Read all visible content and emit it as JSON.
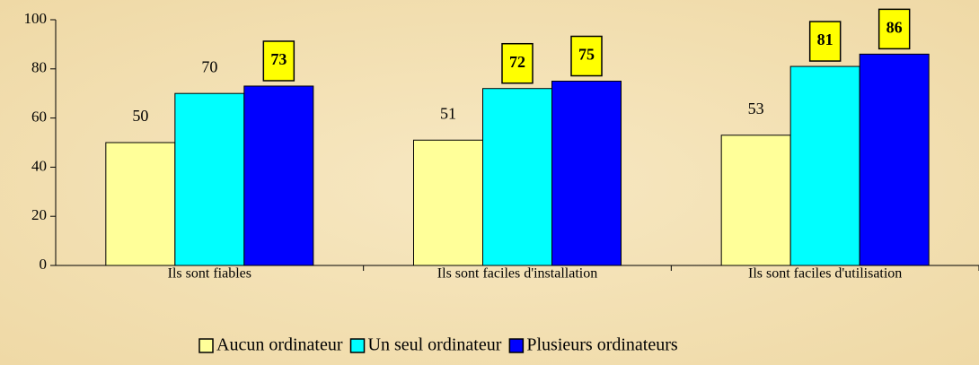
{
  "chart_data": {
    "type": "bar",
    "categories": [
      "Ils sont fiables",
      "Ils sont faciles d'installation",
      "Ils sont faciles d'utilisation"
    ],
    "series": [
      {
        "name": "Aucun ordinateur",
        "color": "#ffff99",
        "values": [
          50,
          51,
          53
        ],
        "highlight": [
          false,
          false,
          false
        ]
      },
      {
        "name": "Un seul ordinateur",
        "color": "#00ffff",
        "values": [
          70,
          72,
          81
        ],
        "highlight": [
          false,
          true,
          true
        ]
      },
      {
        "name": "Plusieurs ordinateurs",
        "color": "#0000ff",
        "values": [
          73,
          75,
          86
        ],
        "highlight": [
          true,
          true,
          true
        ]
      }
    ],
    "ylim": [
      0,
      100
    ],
    "yticks": [
      0,
      20,
      40,
      60,
      80,
      100
    ],
    "grid": false,
    "legend": "bottom"
  }
}
